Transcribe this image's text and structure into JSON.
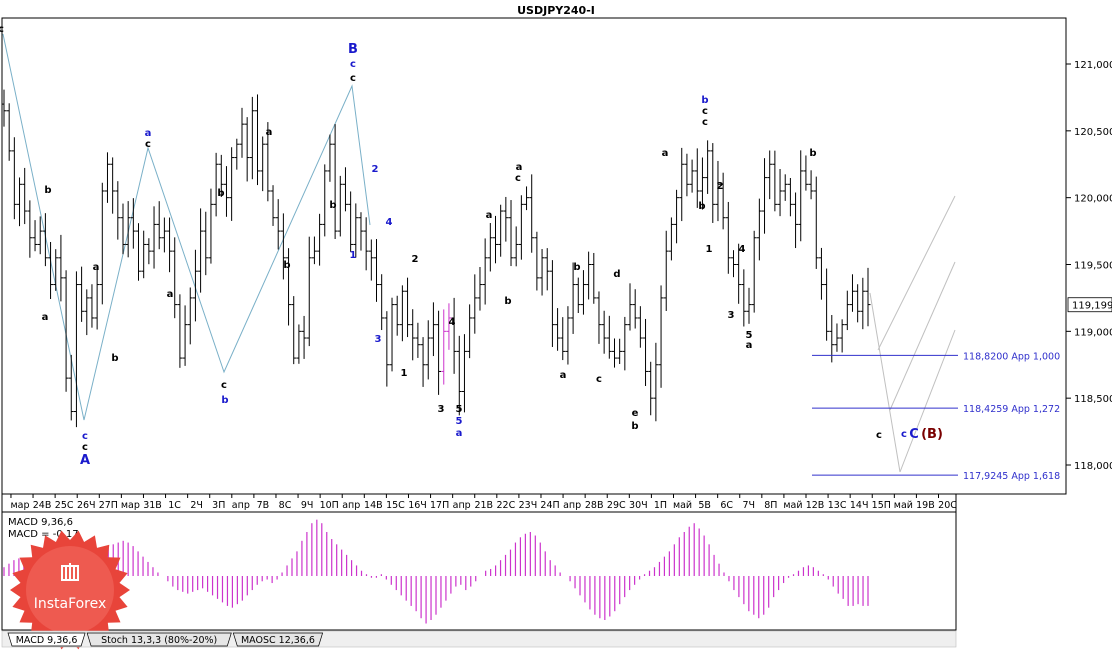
{
  "window": {
    "title": "USDJPY240-I"
  },
  "colors": {
    "background": "#ffffff",
    "candle": "#000000",
    "wave_blue": "#1a1acc",
    "wave_red": "#7a0000",
    "zigzag": "#7ab0c8",
    "channel": "#c0c0c0",
    "target_line": "#3030cc",
    "macd_pos": "#cc33cc",
    "macd_neg": "#cc33cc",
    "logo": "#e8443a"
  },
  "chart_data": [
    {
      "type": "candlestick",
      "title": "USDJPY240-I",
      "ylim": [
        117.75,
        121.38
      ],
      "yticks": [
        "121,000",
        "120,500",
        "120,000",
        "119,500",
        "119,000",
        "118,500",
        "118,000"
      ],
      "yticks_values": [
        121.0,
        120.5,
        120.0,
        119.5,
        119.0,
        118.5,
        118.0
      ],
      "current_price": "119,199",
      "current_price_value": 119.199,
      "x_labels": [
        "мар",
        "24В",
        "25С",
        "26Ч",
        "27П",
        "мар",
        "31В",
        "1С",
        "2Ч",
        "3П",
        "апр",
        "7В",
        "8С",
        "9Ч",
        "10П",
        "апр",
        "14В",
        "15С",
        "16Ч",
        "17П",
        "апр",
        "21В",
        "22С",
        "23Ч",
        "24П",
        "апр",
        "28В",
        "29С",
        "30Ч",
        "1П",
        "май",
        "5В",
        "6С",
        "7Ч",
        "8П",
        "май",
        "12В",
        "13С",
        "14Ч",
        "15П",
        "май",
        "19В",
        "20С"
      ],
      "series_close": [
        120.65,
        120.35,
        119.95,
        120.1,
        119.9,
        119.7,
        119.65,
        119.75,
        119.55,
        119.35,
        119.55,
        119.4,
        118.65,
        118.4,
        119.35,
        119.15,
        119.25,
        119.1,
        119.35,
        120.05,
        120.25,
        120.05,
        119.85,
        119.65,
        119.85,
        119.75,
        119.45,
        119.65,
        119.6,
        119.8,
        119.7,
        119.75,
        119.6,
        119.2,
        118.8,
        119.05,
        119.25,
        119.45,
        119.75,
        119.55,
        119.95,
        120.25,
        120.1,
        120.0,
        120.3,
        120.4,
        120.55,
        120.3,
        120.65,
        120.2,
        120.4,
        120.05,
        119.85,
        119.75,
        119.55,
        119.2,
        118.8,
        119.0,
        118.95,
        119.55,
        119.6,
        119.8,
        120.2,
        120.4,
        119.75,
        120.1,
        119.95,
        119.65,
        119.85,
        119.75,
        119.6,
        119.55,
        119.35,
        119.1,
        118.75,
        119.2,
        119.05,
        119.3,
        119.05,
        118.95,
        118.9,
        118.75,
        118.95,
        119.05,
        118.7,
        119.0,
        119.1,
        118.85,
        118.55,
        118.85,
        119.1,
        119.25,
        119.35,
        119.55,
        119.7,
        119.65,
        119.9,
        119.85,
        119.55,
        119.65,
        119.95,
        120.0,
        119.7,
        119.4,
        119.55,
        119.45,
        119.05,
        118.95,
        118.85,
        119.1,
        119.35,
        119.2,
        119.35,
        119.5,
        119.25,
        119.05,
        118.95,
        118.85,
        118.8,
        118.85,
        119.05,
        119.2,
        119.1,
        118.95,
        118.7,
        118.5,
        118.75,
        119.25,
        119.6,
        119.8,
        120.0,
        120.25,
        120.1,
        120.2,
        120.05,
        120.15,
        120.35,
        119.95,
        120.1,
        119.85,
        119.55,
        119.5,
        119.35,
        119.15,
        119.2,
        119.7,
        119.9,
        120.15,
        120.25,
        119.95,
        120.05,
        120.1,
        119.95,
        119.8,
        120.2,
        120.1,
        120.05,
        119.55,
        119.35,
        119.0,
        118.9,
        118.95,
        119.05,
        119.2,
        119.3,
        119.15,
        119.3,
        119.2
      ]
    },
    {
      "type": "bar",
      "title": "MACD 9,36,6",
      "value_label": "MACD = -0,17",
      "note": "histogram",
      "values": [
        0.05,
        0.07,
        0.09,
        0.1,
        0.09,
        0.07,
        0.06,
        0.04,
        0.02,
        0.01,
        -0.02,
        -0.04,
        -0.03,
        -0.01,
        0.02,
        0.04,
        0.06,
        0.08,
        0.1,
        0.13,
        0.15,
        0.17,
        0.18,
        0.19,
        0.2,
        0.19,
        0.17,
        0.14,
        0.11,
        0.08,
        0.05,
        0.02,
        0.0,
        -0.03,
        -0.06,
        -0.08,
        -0.09,
        -0.1,
        -0.09,
        -0.08,
        -0.07,
        -0.09,
        -0.11,
        -0.13,
        -0.15,
        -0.17,
        -0.18,
        -0.16,
        -0.14,
        -0.11,
        -0.08,
        -0.05,
        -0.03,
        -0.02,
        -0.04,
        -0.02,
        0.02,
        0.06,
        0.1,
        0.14,
        0.2,
        0.25,
        0.3,
        0.32,
        0.3,
        0.25,
        0.21,
        0.18,
        0.15,
        0.12,
        0.09,
        0.06,
        0.03,
        0.01,
        -0.01,
        -0.01,
        0.01,
        -0.02,
        -0.05,
        -0.08,
        -0.11,
        -0.14,
        -0.17,
        -0.2,
        -0.24,
        -0.27,
        -0.25,
        -0.22,
        -0.18,
        -0.14,
        -0.1,
        -0.06,
        -0.05,
        -0.08,
        -0.06,
        -0.03,
        0.0,
        0.03,
        0.04,
        0.06,
        0.09,
        0.12,
        0.15,
        0.19,
        0.22,
        0.24,
        0.25,
        0.23,
        0.19,
        0.14,
        0.09,
        0.06,
        0.02,
        0.0,
        -0.03,
        -0.07,
        -0.11,
        -0.15,
        -0.19,
        -0.22,
        -0.24,
        -0.25,
        -0.23,
        -0.2,
        -0.16,
        -0.12,
        -0.08,
        -0.05,
        -0.02,
        0.01,
        0.03,
        0.05,
        0.08,
        0.11,
        0.14,
        0.18,
        0.22,
        0.25,
        0.28,
        0.3,
        0.27,
        0.23,
        0.18,
        0.12,
        0.07,
        0.02,
        -0.03,
        -0.08,
        -0.12,
        -0.16,
        -0.2,
        -0.22,
        -0.24,
        -0.22,
        -0.18,
        -0.12,
        -0.08,
        -0.04,
        -0.01,
        0.01,
        0.03,
        0.05,
        0.06,
        0.05,
        0.03,
        0.01,
        -0.02,
        -0.06,
        -0.1,
        -0.13,
        -0.17,
        -0.17,
        -0.16,
        -0.17,
        -0.17
      ]
    }
  ],
  "wave_labels": [
    {
      "text": "c",
      "color": "black"
    },
    {
      "text": "b",
      "color": "black"
    },
    {
      "text": "a",
      "color": "black"
    },
    {
      "text": "a",
      "color": "black"
    },
    {
      "text": "b",
      "color": "black"
    },
    {
      "text": "c",
      "color": "blue"
    },
    {
      "text": "c",
      "color": "black"
    },
    {
      "text": "A",
      "color": "blue"
    },
    {
      "text": "a",
      "color": "blue"
    },
    {
      "text": "c",
      "color": "black"
    },
    {
      "text": "b",
      "color": "black"
    },
    {
      "text": "a",
      "color": "black"
    },
    {
      "text": "b",
      "color": "black"
    },
    {
      "text": "c",
      "color": "black"
    },
    {
      "text": "b",
      "color": "blue"
    },
    {
      "text": "a",
      "color": "black"
    },
    {
      "text": "b",
      "color": "black"
    },
    {
      "text": "B",
      "color": "blue"
    },
    {
      "text": "c",
      "color": "blue"
    },
    {
      "text": "c",
      "color": "black"
    },
    {
      "text": "2",
      "color": "blue"
    },
    {
      "text": "1",
      "color": "blue"
    },
    {
      "text": "4",
      "color": "blue"
    },
    {
      "text": "3",
      "color": "blue"
    },
    {
      "text": "2",
      "color": "black"
    },
    {
      "text": "1",
      "color": "black"
    },
    {
      "text": "4",
      "color": "black"
    },
    {
      "text": "3",
      "color": "black"
    },
    {
      "text": "5",
      "color": "black"
    },
    {
      "text": "5",
      "color": "blue"
    },
    {
      "text": "a",
      "color": "blue"
    },
    {
      "text": "a",
      "color": "black"
    },
    {
      "text": "b",
      "color": "black"
    },
    {
      "text": "a",
      "color": "black"
    },
    {
      "text": "c",
      "color": "black"
    },
    {
      "text": "b",
      "color": "black"
    },
    {
      "text": "a",
      "color": "black"
    },
    {
      "text": "c",
      "color": "black"
    },
    {
      "text": "d",
      "color": "black"
    },
    {
      "text": "e",
      "color": "black"
    },
    {
      "text": "b",
      "color": "black"
    },
    {
      "text": "a",
      "color": "black"
    },
    {
      "text": "b",
      "color": "blue"
    },
    {
      "text": "c",
      "color": "black"
    },
    {
      "text": "c",
      "color": "black"
    },
    {
      "text": "b",
      "color": "black"
    },
    {
      "text": "2",
      "color": "black"
    },
    {
      "text": "1",
      "color": "black"
    },
    {
      "text": "4",
      "color": "black"
    },
    {
      "text": "3",
      "color": "black"
    },
    {
      "text": "5",
      "color": "black"
    },
    {
      "text": "a",
      "color": "black"
    },
    {
      "text": "b",
      "color": "black"
    },
    {
      "text": "c",
      "color": "black"
    },
    {
      "text": "c",
      "color": "blue"
    },
    {
      "text": "C",
      "color": "blue"
    },
    {
      "text": "(B)",
      "color": "darkred"
    }
  ],
  "targets": [
    {
      "label": "118,8200 App 1,000",
      "value": 118.82
    },
    {
      "label": "118,4259 App 1,272",
      "value": 118.4259
    },
    {
      "label": "117,9245 App 1,618",
      "value": 117.9245
    }
  ],
  "indicator": {
    "label": "MACD 9,36,6",
    "value_label": "MACD = -0,17"
  },
  "tabs": [
    {
      "label": "MACD 9,36,6",
      "active": true
    },
    {
      "label": "Stoch 13,3,3 (80%-20%)",
      "active": false
    },
    {
      "label": "MAOSC 12,36,6",
      "active": false
    }
  ],
  "logo": {
    "text": "InstaForex"
  }
}
